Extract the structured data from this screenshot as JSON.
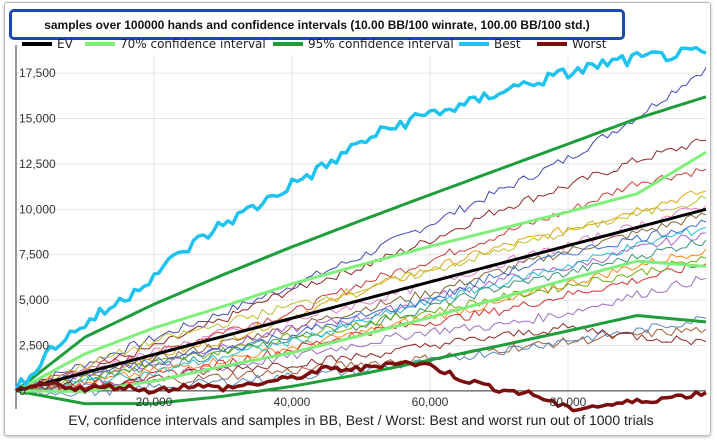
{
  "chart_data": {
    "type": "line",
    "title": "samples over 100000 hands and confidence intervals (10.00 BB/100 winrate, 100.00 BB/100 std.)",
    "xlabel": "EV, confidence intervals and samples in BB, Best / Worst: Best and worst run out of 1000 trials",
    "ylabel": "",
    "xlim": [
      0,
      100000
    ],
    "ylim": [
      -1000,
      18500
    ],
    "x_ticks": [
      20000,
      40000,
      60000,
      80000
    ],
    "x_tick_labels": [
      "20,000",
      "40,000",
      "60,000",
      "80,000"
    ],
    "y_ticks": [
      0,
      2500,
      5000,
      7500,
      10000,
      12500,
      15000,
      17500
    ],
    "y_tick_labels": [
      "0",
      "2,500",
      "5,000",
      "7,500",
      "10,000",
      "12,500",
      "15,000",
      "17,500"
    ],
    "winrate_bb_per_100": 10.0,
    "std_bb_per_100": 100.0,
    "legend": [
      {
        "label": "EV",
        "color": "#000000"
      },
      {
        "label": "70% confidence interval",
        "color": "#7ef07a"
      },
      {
        "label": "95% confidence interval",
        "color": "#1e9e3a"
      },
      {
        "label": "Best",
        "color": "#1ec3ef"
      },
      {
        "label": "Worst",
        "color": "#7b0d0d"
      }
    ],
    "series": [
      {
        "name": "EV",
        "x": [
          0,
          100000
        ],
        "values": [
          0,
          10000
        ]
      },
      {
        "name": "70% confidence interval upper",
        "x": [
          0,
          10000,
          20000,
          30000,
          40000,
          50000,
          60000,
          70000,
          80000,
          90000,
          100000
        ],
        "values": [
          0,
          2037,
          3465,
          4646,
          5897,
          6945,
          7957,
          8908,
          9859,
          10852,
          13146
        ]
      },
      {
        "name": "70% confidence interval lower",
        "x": [
          0,
          10000,
          20000,
          30000,
          40000,
          50000,
          60000,
          70000,
          80000,
          90000,
          100000
        ],
        "values": [
          0,
          -36,
          535,
          1354,
          2103,
          3055,
          4043,
          5092,
          6141,
          7148,
          6854
        ]
      },
      {
        "name": "95% confidence interval upper",
        "x": [
          0,
          10000,
          20000,
          30000,
          40000,
          50000,
          60000,
          70000,
          80000,
          90000,
          100000
        ],
        "values": [
          0,
          2960,
          4772,
          6393,
          7932,
          9382,
          10800,
          12200,
          13600,
          15000,
          16200
        ]
      },
      {
        "name": "95% confidence interval lower",
        "x": [
          0,
          10000,
          20000,
          30000,
          40000,
          50000,
          60000,
          70000,
          80000,
          90000,
          100000
        ],
        "values": [
          0,
          -706,
          -700,
          -300,
          250,
          920,
          1700,
          2480,
          3300,
          4150,
          3800
        ]
      },
      {
        "name": "Best",
        "x": [
          0,
          5000,
          10000,
          15000,
          20000,
          25000,
          30000,
          35000,
          40000,
          45000,
          50000,
          55000,
          60000,
          65000,
          70000,
          75000,
          80000,
          85000,
          90000,
          95000,
          100000
        ],
        "values": [
          0,
          2300,
          3700,
          4900,
          6400,
          7900,
          9200,
          10200,
          11400,
          12400,
          13700,
          14600,
          15300,
          15700,
          16500,
          17000,
          17500,
          18000,
          18300,
          18500,
          18600
        ]
      },
      {
        "name": "Worst",
        "x": [
          0,
          5000,
          10000,
          15000,
          20000,
          25000,
          30000,
          35000,
          40000,
          45000,
          50000,
          55000,
          60000,
          65000,
          70000,
          75000,
          80000,
          85000,
          90000,
          95000,
          100000
        ],
        "values": [
          0,
          400,
          100,
          250,
          0,
          300,
          150,
          400,
          700,
          1200,
          1200,
          1600,
          1400,
          600,
          100,
          -200,
          -1000,
          -800,
          -600,
          -350,
          -100
        ]
      },
      {
        "name": "sample 1",
        "x": [
          0,
          10000,
          20000,
          30000,
          40000,
          50000,
          60000,
          70000,
          80000,
          90000,
          100000
        ],
        "values": [
          0,
          1500,
          2900,
          4300,
          5800,
          7400,
          9200,
          11000,
          12800,
          15100,
          17800
        ]
      },
      {
        "name": "sample 2",
        "x": [
          0,
          10000,
          20000,
          30000,
          40000,
          50000,
          60000,
          70000,
          80000,
          90000,
          100000
        ],
        "values": [
          0,
          1200,
          2400,
          3900,
          5600,
          6800,
          8300,
          10000,
          11300,
          12700,
          13800
        ]
      },
      {
        "name": "sample 3",
        "x": [
          0,
          10000,
          20000,
          30000,
          40000,
          50000,
          60000,
          70000,
          80000,
          90000,
          100000
        ],
        "values": [
          0,
          1300,
          2000,
          3300,
          4300,
          5900,
          7200,
          8600,
          9900,
          11500,
          12200
        ]
      },
      {
        "name": "sample 4",
        "x": [
          0,
          10000,
          20000,
          30000,
          40000,
          50000,
          60000,
          70000,
          80000,
          90000,
          100000
        ],
        "values": [
          0,
          900,
          1900,
          2800,
          4100,
          5500,
          6700,
          7900,
          8900,
          10000,
          11000
        ]
      },
      {
        "name": "sample 5",
        "x": [
          0,
          10000,
          20000,
          30000,
          40000,
          50000,
          60000,
          70000,
          80000,
          90000,
          100000
        ],
        "values": [
          0,
          800,
          1700,
          2600,
          3500,
          4500,
          5400,
          6600,
          7700,
          8700,
          9700
        ]
      },
      {
        "name": "sample 6",
        "x": [
          0,
          10000,
          20000,
          30000,
          40000,
          50000,
          60000,
          70000,
          80000,
          90000,
          100000
        ],
        "values": [
          0,
          1000,
          1400,
          2500,
          3400,
          4000,
          5100,
          6100,
          6800,
          7800,
          8700
        ]
      },
      {
        "name": "sample 7",
        "x": [
          0,
          10000,
          20000,
          30000,
          40000,
          50000,
          60000,
          70000,
          80000,
          90000,
          100000
        ],
        "values": [
          0,
          600,
          1300,
          2100,
          2900,
          3600,
          4600,
          5700,
          6500,
          7400,
          8300
        ]
      },
      {
        "name": "sample 8",
        "x": [
          0,
          10000,
          20000,
          30000,
          40000,
          50000,
          60000,
          70000,
          80000,
          90000,
          100000
        ],
        "values": [
          0,
          400,
          1100,
          1700,
          2400,
          3200,
          4100,
          4800,
          5900,
          6900,
          7800
        ]
      },
      {
        "name": "sample 9",
        "x": [
          0,
          10000,
          20000,
          30000,
          40000,
          50000,
          60000,
          70000,
          80000,
          90000,
          100000
        ],
        "values": [
          0,
          300,
          800,
          1500,
          2300,
          3200,
          3800,
          4400,
          5300,
          6100,
          7000
        ]
      },
      {
        "name": "sample 10",
        "x": [
          0,
          10000,
          20000,
          30000,
          40000,
          50000,
          60000,
          70000,
          80000,
          90000,
          100000
        ],
        "values": [
          0,
          200,
          600,
          1300,
          1900,
          2600,
          3300,
          3600,
          4300,
          5300,
          6200
        ]
      },
      {
        "name": "sample 11",
        "x": [
          0,
          10000,
          20000,
          30000,
          40000,
          50000,
          60000,
          70000,
          80000,
          90000,
          100000
        ],
        "values": [
          0,
          100,
          500,
          800,
          1100,
          1500,
          1800,
          2300,
          2700,
          3100,
          3400
        ]
      },
      {
        "name": "sample 12",
        "x": [
          0,
          10000,
          20000,
          30000,
          40000,
          50000,
          60000,
          70000,
          80000,
          90000,
          100000
        ],
        "values": [
          0,
          -100,
          200,
          500,
          800,
          1100,
          1600,
          2200,
          2800,
          3300,
          4000
        ]
      },
      {
        "name": "sample 13",
        "x": [
          0,
          10000,
          20000,
          30000,
          40000,
          50000,
          60000,
          70000,
          80000,
          90000,
          100000
        ],
        "values": [
          0,
          700,
          1500,
          2200,
          3000,
          3700,
          4400,
          5100,
          5800,
          6500,
          7300
        ]
      },
      {
        "name": "sample 14",
        "x": [
          0,
          10000,
          20000,
          30000,
          40000,
          50000,
          60000,
          70000,
          80000,
          90000,
          100000
        ],
        "values": [
          0,
          1100,
          2100,
          3200,
          3900,
          4800,
          5900,
          7000,
          8000,
          9100,
          10200
        ]
      },
      {
        "name": "sample 15",
        "x": [
          0,
          10000,
          20000,
          30000,
          40000,
          50000,
          60000,
          70000,
          80000,
          90000,
          100000
        ],
        "values": [
          0,
          500,
          1000,
          1900,
          2700,
          3800,
          4900,
          5900,
          6900,
          8000,
          9000
        ]
      },
      {
        "name": "sample 16",
        "x": [
          0,
          10000,
          20000,
          30000,
          40000,
          50000,
          60000,
          70000,
          80000,
          90000,
          100000
        ],
        "values": [
          0,
          1400,
          2700,
          3700,
          4700,
          5600,
          6600,
          7700,
          8800,
          9700,
          10600
        ]
      },
      {
        "name": "sample 17",
        "x": [
          0,
          10000,
          20000,
          30000,
          40000,
          50000,
          60000,
          70000,
          80000,
          90000,
          100000
        ],
        "values": [
          0,
          900,
          1600,
          2300,
          3100,
          4100,
          5000,
          6400,
          7600,
          8400,
          9300
        ]
      },
      {
        "name": "sample 18",
        "x": [
          0,
          10000,
          20000,
          30000,
          40000,
          50000,
          60000,
          70000,
          80000,
          90000,
          100000
        ],
        "values": [
          0,
          300,
          700,
          1200,
          1500,
          1900,
          2500,
          3000,
          3500,
          3000,
          2700
        ]
      }
    ],
    "sample_colors": [
      "#3a3fb8",
      "#8b1a1a",
      "#cc3333",
      "#e0a000",
      "#7a5c2e",
      "#aa55cc",
      "#2f8f6f",
      "#ff7f0e",
      "#d62728",
      "#9467bd",
      "#a0522d",
      "#4f81bd",
      "#66aa00",
      "#e377c2",
      "#17becf",
      "#bcbd22",
      "#3366cc",
      "#8c1c1c"
    ]
  }
}
